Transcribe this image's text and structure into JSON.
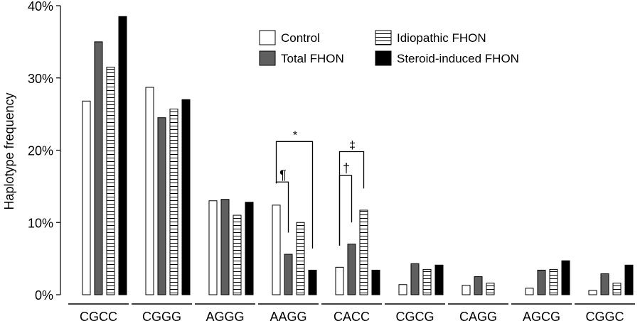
{
  "chart_data": {
    "type": "bar",
    "ylabel": "Haplotype frequency",
    "ylim": [
      0,
      40
    ],
    "y_ticks": [
      0,
      10,
      20,
      30,
      40
    ],
    "y_tick_labels": [
      "0%",
      "10%",
      "20%",
      "30%",
      "40%"
    ],
    "categories": [
      "CGCC",
      "CGGG",
      "AGGG",
      "AAGG",
      "CACC",
      "CGCG",
      "CAGG",
      "AGCG",
      "CGGC"
    ],
    "series": [
      {
        "name": "Control",
        "fill": "white",
        "values": [
          26.8,
          28.7,
          13.0,
          12.4,
          3.8,
          1.4,
          1.3,
          0.9,
          0.6
        ]
      },
      {
        "name": "Total FHON",
        "fill": "gray",
        "values": [
          35.0,
          24.5,
          13.2,
          5.6,
          7.0,
          4.3,
          2.5,
          3.4,
          2.9
        ]
      },
      {
        "name": "Idiopathic FHON",
        "fill": "hatched",
        "values": [
          31.5,
          25.7,
          11.0,
          10.0,
          11.7,
          3.5,
          1.6,
          3.5,
          1.6
        ]
      },
      {
        "name": "Steroid-induced FHON",
        "fill": "black",
        "values": [
          38.5,
          27.0,
          12.8,
          3.4,
          3.4,
          4.1,
          0,
          4.7,
          4.1
        ]
      }
    ],
    "annotations": [
      {
        "symbol": "*",
        "category": "AAGG",
        "from_series": "Control",
        "to_series": "Steroid-induced FHON"
      },
      {
        "symbol": "¶",
        "category": "AAGG",
        "from_series": "Control",
        "to_series": "Total FHON"
      },
      {
        "symbol": "‡",
        "category": "CACC",
        "from_series": "Control",
        "to_series": "Idiopathic FHON"
      },
      {
        "symbol": "†",
        "category": "CACC",
        "from_series": "Control",
        "to_series": "Total FHON"
      }
    ],
    "legend_position": "top-right",
    "grid": false,
    "colors": {
      "gray": "#5f5f5f",
      "black": "#000000",
      "white": "#ffffff",
      "hatch": "#000000"
    }
  }
}
